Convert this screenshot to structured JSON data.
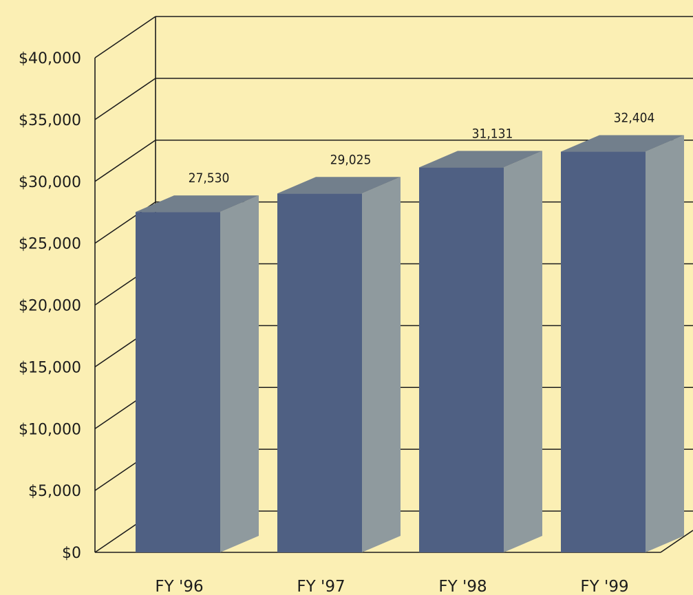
{
  "chart_data": {
    "type": "bar",
    "categories": [
      "FY '96",
      "FY '97",
      "FY '98",
      "FY '99"
    ],
    "values": [
      27530,
      29025,
      31131,
      32404
    ],
    "data_labels": [
      "27,530",
      "29,025",
      "31,131",
      "32,404"
    ],
    "y_tick_labels": [
      "$0",
      "$5,000",
      "$10,000",
      "$15,000",
      "$20,000",
      "$25,000",
      "$30,000",
      "$35,000",
      "$40,000"
    ],
    "ylim": [
      0,
      40000
    ],
    "y_tick_step": 5000,
    "grid": true,
    "three_d": true,
    "colors": {
      "background": "#fbefb4",
      "bar_front": "#4f6083",
      "bar_side": "#8f9a9e",
      "bar_top": "#727f8c",
      "grid_line": "#1c1c1c",
      "text": "#1c1c1c"
    }
  }
}
